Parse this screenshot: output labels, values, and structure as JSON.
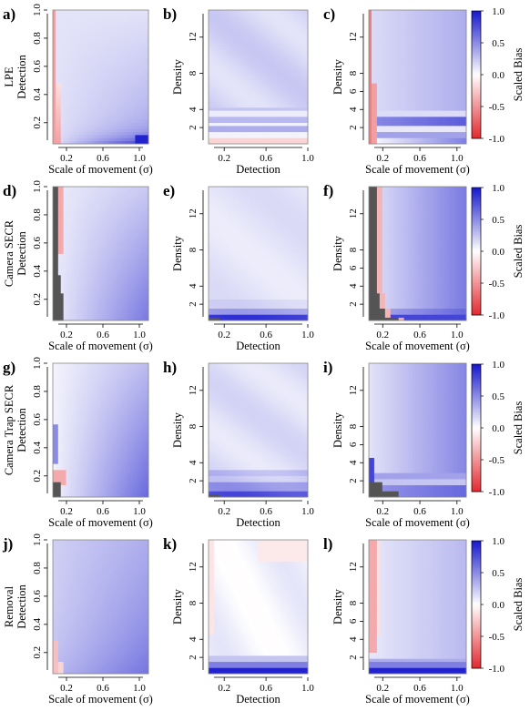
{
  "figure": {
    "scale_label": "Scaled Bias",
    "colors": {
      "negative": "#e3292f",
      "zero": "#ffffff",
      "positive": "#1616cc",
      "masked": "#555555"
    }
  },
  "chart_data": [
    {
      "panel": "a)",
      "type": "heatmap",
      "row": 0,
      "col": 0,
      "method": "LPE",
      "xlabel": "Scale of movement (σ)",
      "ylabel": "Detection",
      "xlim": [
        0.05,
        1.1
      ],
      "ylim": [
        0.05,
        1.0
      ],
      "xticks": [
        "0.2",
        "0.6",
        "1.0"
      ],
      "yticks": [
        "0.2",
        "0.4",
        "0.6",
        "0.8",
        "1.0"
      ],
      "pattern": "A_lpe",
      "colorbar": false
    },
    {
      "panel": "b)",
      "type": "heatmap",
      "row": 0,
      "col": 1,
      "xlabel": "Detection",
      "ylabel": "Density",
      "xlim": [
        0.05,
        1.0
      ],
      "ylim": [
        0.2,
        15
      ],
      "xticks": [
        "0.2",
        "0.6",
        "1.0"
      ],
      "yticks": [
        "2",
        "4",
        "8",
        "12"
      ],
      "pattern": "B_lpe",
      "colorbar": false
    },
    {
      "panel": "c)",
      "type": "heatmap",
      "row": 0,
      "col": 2,
      "xlabel": "Scale of movement (σ)",
      "ylabel": "Density",
      "xlim": [
        0.05,
        1.1
      ],
      "ylim": [
        0.2,
        15
      ],
      "xticks": [
        "0.2",
        "0.6",
        "1.0"
      ],
      "yticks": [
        "2",
        "4",
        "6",
        "8",
        "12"
      ],
      "pattern": "C_lpe",
      "colorbar": true,
      "colorbar_ticks": [
        "1.0",
        "0.5",
        "0.0",
        "-0.5",
        "-1.0"
      ],
      "colorbar_range": [
        -1,
        1
      ]
    },
    {
      "panel": "d)",
      "type": "heatmap",
      "row": 1,
      "col": 0,
      "method": "Camera SECR",
      "xlabel": "Scale of movement (σ)",
      "ylabel": "Detection",
      "xlim": [
        0.05,
        1.1
      ],
      "ylim": [
        0.05,
        1.0
      ],
      "xticks": [
        "0.2",
        "0.6",
        "1.0"
      ],
      "yticks": [
        "0.2",
        "0.4",
        "0.6",
        "0.8",
        "1.0"
      ],
      "pattern": "A_cam",
      "colorbar": false
    },
    {
      "panel": "e)",
      "type": "heatmap",
      "row": 1,
      "col": 1,
      "xlabel": "Detection",
      "ylabel": "Density",
      "xlim": [
        0.05,
        1.0
      ],
      "ylim": [
        0.2,
        15
      ],
      "xticks": [
        "0.2",
        "0.6",
        "1.0"
      ],
      "yticks": [
        "2",
        "4",
        "8",
        "12"
      ],
      "pattern": "B_cam",
      "colorbar": false
    },
    {
      "panel": "f)",
      "type": "heatmap",
      "row": 1,
      "col": 2,
      "xlabel": "Scale of movement (σ)",
      "ylabel": "Density",
      "xlim": [
        0.05,
        1.1
      ],
      "ylim": [
        0.2,
        15
      ],
      "xticks": [
        "0.2",
        "0.6",
        "1.0"
      ],
      "yticks": [
        "2",
        "4",
        "6",
        "8",
        "12"
      ],
      "pattern": "C_cam",
      "colorbar": true,
      "colorbar_ticks": [
        "1.0",
        "0.5",
        "0.0",
        "-0.5",
        "-1.0"
      ],
      "colorbar_range": [
        -1,
        1
      ]
    },
    {
      "panel": "g)",
      "type": "heatmap",
      "row": 2,
      "col": 0,
      "method": "Camera Trap SECR",
      "xlabel": "Scale of movement (σ)",
      "ylabel": "Detection",
      "xlim": [
        0.05,
        1.1
      ],
      "ylim": [
        0.05,
        1.0
      ],
      "xticks": [
        "0.2",
        "0.6",
        "1.0"
      ],
      "yticks": [
        "0.2",
        "0.4",
        "0.6",
        "0.8",
        "1.0"
      ],
      "pattern": "A_trap",
      "colorbar": false
    },
    {
      "panel": "h)",
      "type": "heatmap",
      "row": 2,
      "col": 1,
      "xlabel": "Detection",
      "ylabel": "Density",
      "xlim": [
        0.05,
        1.0
      ],
      "ylim": [
        0.2,
        15
      ],
      "xticks": [
        "0.2",
        "0.6",
        "1.0"
      ],
      "yticks": [
        "2",
        "4",
        "8",
        "12"
      ],
      "pattern": "B_trap",
      "colorbar": false
    },
    {
      "panel": "i)",
      "type": "heatmap",
      "row": 2,
      "col": 2,
      "xlabel": "Scale of movement (σ)",
      "ylabel": "Density",
      "xlim": [
        0.05,
        1.1
      ],
      "ylim": [
        0.2,
        15
      ],
      "xticks": [
        "0.2",
        "0.6",
        "1.0"
      ],
      "yticks": [
        "2",
        "4",
        "6",
        "8",
        "12"
      ],
      "pattern": "C_trap",
      "colorbar": true,
      "colorbar_ticks": [
        "1.0",
        "0.5",
        "0.0",
        "-0.5",
        "-1.0"
      ],
      "colorbar_range": [
        -1,
        1
      ]
    },
    {
      "panel": "j)",
      "type": "heatmap",
      "row": 3,
      "col": 0,
      "method": "Removal",
      "xlabel": "Scale of movement (σ)",
      "ylabel": "Detection",
      "xlim": [
        0.05,
        1.1
      ],
      "ylim": [
        0.05,
        1.0
      ],
      "xticks": [
        "0.2",
        "0.6",
        "1.0"
      ],
      "yticks": [
        "0.2",
        "0.4",
        "0.6",
        "0.8",
        "1.0"
      ],
      "pattern": "A_rem",
      "colorbar": false
    },
    {
      "panel": "k)",
      "type": "heatmap",
      "row": 3,
      "col": 1,
      "xlabel": "Detection",
      "ylabel": "Density",
      "xlim": [
        0.05,
        1.0
      ],
      "ylim": [
        0.2,
        15
      ],
      "xticks": [
        "0.2",
        "0.6",
        "1.0"
      ],
      "yticks": [
        "2",
        "4",
        "8",
        "12"
      ],
      "pattern": "B_rem",
      "colorbar": false
    },
    {
      "panel": "l)",
      "type": "heatmap",
      "row": 3,
      "col": 2,
      "xlabel": "Scale of movement (σ)",
      "ylabel": "Density",
      "xlim": [
        0.05,
        1.1
      ],
      "ylim": [
        0.2,
        15
      ],
      "xticks": [
        "0.2",
        "0.6",
        "1.0"
      ],
      "yticks": [
        "2",
        "4",
        "6",
        "8",
        "12"
      ],
      "pattern": "C_rem",
      "colorbar": true,
      "colorbar_ticks": [
        "1.0",
        "0.5",
        "0.0",
        "-0.5",
        "-1.0"
      ],
      "colorbar_range": [
        -1,
        1
      ]
    }
  ]
}
